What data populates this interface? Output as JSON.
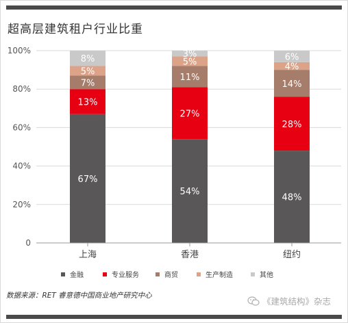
{
  "header": {
    "title": "超高层建筑租户行业比重"
  },
  "chart_data": {
    "type": "bar",
    "stacked": true,
    "title": "超高层建筑租户行业比重",
    "categories": [
      "上海",
      "香港",
      "纽约"
    ],
    "series": [
      {
        "name": "金融",
        "values": [
          67,
          54,
          48
        ],
        "color": "#595757"
      },
      {
        "name": "专业服务",
        "values": [
          13,
          27,
          28
        ],
        "color": "#e60012"
      },
      {
        "name": "商贸",
        "values": [
          7,
          11,
          14
        ],
        "color": "#a67d6b"
      },
      {
        "name": "生产制造",
        "values": [
          5,
          5,
          4
        ],
        "color": "#dda389"
      },
      {
        "name": "其他",
        "values": [
          8,
          3,
          6
        ],
        "color": "#c9c9c9"
      }
    ],
    "data_labels": [
      [
        "67%",
        "54%",
        "48%"
      ],
      [
        "13%",
        "27%",
        "28%"
      ],
      [
        "7%",
        "11%",
        "14%"
      ],
      [
        "5%",
        "5%",
        "4%"
      ],
      [
        "8%",
        "3%",
        "6%"
      ]
    ],
    "yticks": [
      0,
      20,
      40,
      60,
      80,
      100
    ],
    "ytick_labels": [
      "0",
      "20%",
      "40%",
      "60%",
      "80%",
      "100%"
    ],
    "ylim": [
      0,
      100
    ],
    "grid": true,
    "legend_position": "bottom"
  },
  "footer": {
    "source": "数据来源：RET 睿意德中国商业地产研究中心",
    "watermark": "《建筑结构》杂志"
  }
}
